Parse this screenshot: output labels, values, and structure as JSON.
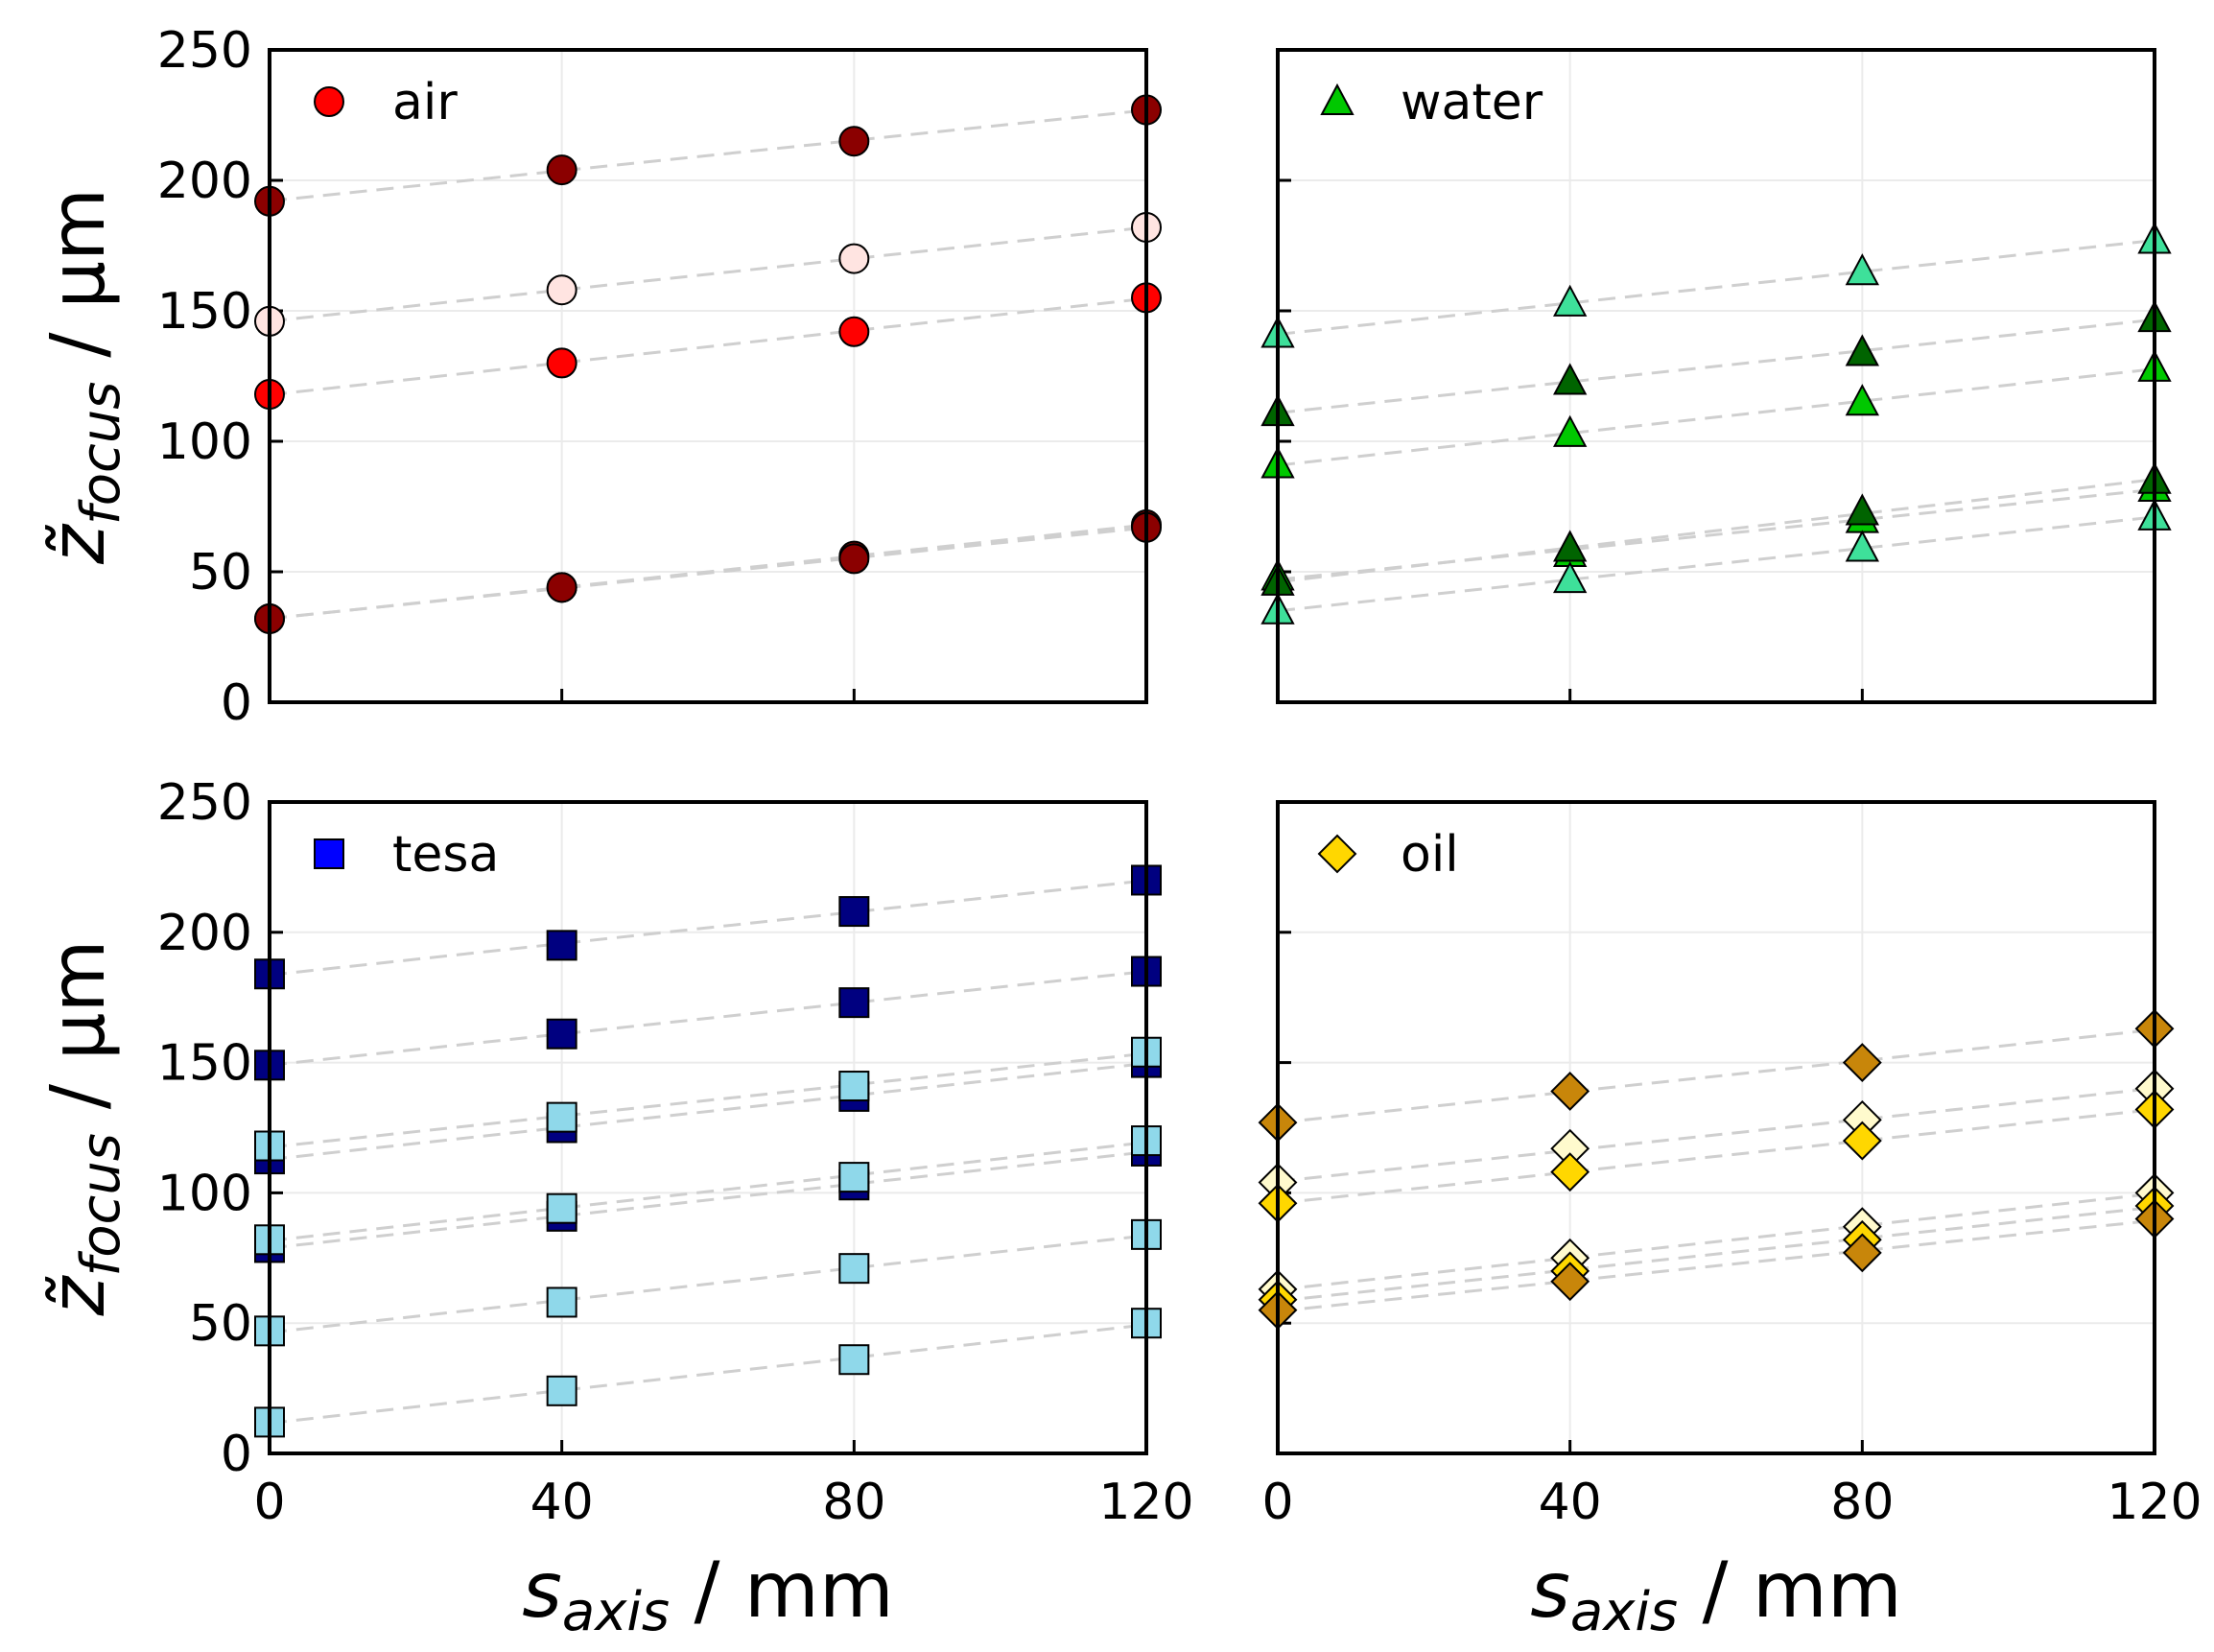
{
  "chart_data": [
    {
      "type": "scatter",
      "legend": "air",
      "legend_placement": "top-left",
      "legend_color": "#ff0000",
      "marker": "circle",
      "x": [
        0,
        40,
        80,
        120
      ],
      "xlabel": "s_axis / mm",
      "ylabel": "z̃_focus / µm",
      "xlim": [
        0,
        120
      ],
      "ylim": [
        0,
        250
      ],
      "xticks": [
        "0",
        "40",
        "80",
        "120"
      ],
      "yticks": [
        "0",
        "50",
        "100",
        "150",
        "200",
        "250"
      ],
      "grid": true,
      "series": [
        {
          "color": "#8b0000",
          "values": [
            192,
            204,
            215,
            227
          ]
        },
        {
          "color": "#ffe4e1",
          "values": [
            146,
            158,
            170,
            182
          ]
        },
        {
          "color": "#ff0000",
          "values": [
            118,
            130,
            142,
            155
          ]
        },
        {
          "color": "#8b0000",
          "values": [
            32,
            44,
            56,
            68
          ]
        },
        {
          "color": "#8b0000",
          "values": [
            32,
            44,
            55,
            67
          ]
        }
      ]
    },
    {
      "type": "scatter",
      "legend": "water",
      "legend_placement": "top-left",
      "legend_color": "#00c800",
      "marker": "triangle",
      "x": [
        0,
        40,
        80,
        120
      ],
      "xlabel": "s_axis / mm",
      "xlim": [
        0,
        120
      ],
      "ylim": [
        0,
        250
      ],
      "xticks": [
        "0",
        "40",
        "80",
        "120"
      ],
      "grid": true,
      "series": [
        {
          "color": "#3ee09a",
          "values": [
            141,
            153,
            165,
            177
          ]
        },
        {
          "color": "#006400",
          "values": [
            111,
            123,
            134,
            147
          ]
        },
        {
          "color": "#00c800",
          "values": [
            91,
            103,
            115,
            128
          ]
        },
        {
          "color": "#00c800",
          "values": [
            48,
            57,
            70,
            82
          ]
        },
        {
          "color": "#006400",
          "values": [
            46,
            59,
            73,
            85
          ]
        },
        {
          "color": "#3ee09a",
          "values": [
            35,
            47,
            59,
            71
          ]
        }
      ]
    },
    {
      "type": "scatter",
      "legend": "tesa",
      "legend_placement": "top-left",
      "legend_color": "#0000ff",
      "marker": "square",
      "x": [
        0,
        40,
        80,
        120
      ],
      "xlabel": "s_axis / mm",
      "ylabel": "z̃_focus / µm",
      "xlim": [
        0,
        120
      ],
      "ylim": [
        0,
        250
      ],
      "xticks": [
        "0",
        "40",
        "80",
        "120"
      ],
      "yticks": [
        "0",
        "50",
        "100",
        "150",
        "200",
        "250"
      ],
      "grid": true,
      "series": [
        {
          "color": "#000080",
          "values": [
            184,
            195,
            208,
            220
          ]
        },
        {
          "color": "#000080",
          "values": [
            149,
            161,
            173,
            185
          ]
        },
        {
          "color": "#000080",
          "values": [
            113,
            125,
            137,
            150
          ]
        },
        {
          "color": "#8fd8ea",
          "values": [
            118,
            129,
            141,
            154
          ]
        },
        {
          "color": "#000080",
          "values": [
            79,
            91,
            103,
            116
          ]
        },
        {
          "color": "#8fd8ea",
          "values": [
            82,
            94,
            106,
            120
          ]
        },
        {
          "color": "#8fd8ea",
          "values": [
            47,
            58,
            71,
            84
          ]
        },
        {
          "color": "#8fd8ea",
          "values": [
            12,
            24,
            36,
            50
          ]
        }
      ]
    },
    {
      "type": "scatter",
      "legend": "oil",
      "legend_placement": "top-left",
      "legend_color": "#ffd700",
      "marker": "diamond",
      "x": [
        0,
        40,
        80,
        120
      ],
      "xlabel": "s_axis / mm",
      "xlim": [
        0,
        120
      ],
      "ylim": [
        0,
        250
      ],
      "xticks": [
        "0",
        "40",
        "80",
        "120"
      ],
      "grid": true,
      "series": [
        {
          "color": "#c8860a",
          "values": [
            127,
            139,
            150,
            163
          ]
        },
        {
          "color": "#fffacd",
          "values": [
            104,
            117,
            128,
            140
          ]
        },
        {
          "color": "#ffd700",
          "values": [
            96,
            108,
            120,
            132
          ]
        },
        {
          "color": "#fffacd",
          "values": [
            63,
            75,
            87,
            100
          ]
        },
        {
          "color": "#ffd700",
          "values": [
            59,
            70,
            82,
            95
          ]
        },
        {
          "color": "#c8860a",
          "values": [
            55,
            66,
            77,
            90
          ]
        }
      ]
    }
  ],
  "labels": {
    "y_main": "z̃",
    "y_sub": "focus",
    "y_unit": " / µm",
    "x_main": "s",
    "x_sub": "axis",
    "x_unit": " / mm"
  }
}
